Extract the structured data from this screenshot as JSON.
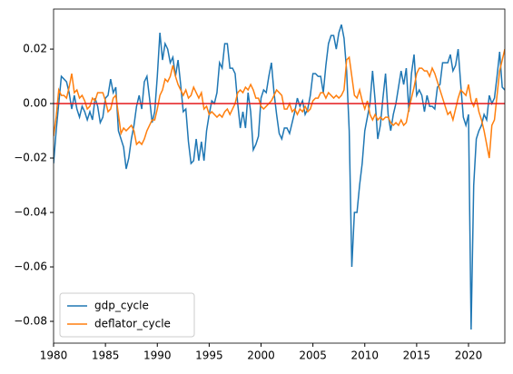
{
  "chart_data": {
    "type": "line",
    "x": [
      1980,
      1980.25,
      1980.5,
      1980.75,
      1981,
      1981.25,
      1981.5,
      1981.75,
      1982,
      1982.25,
      1982.5,
      1982.75,
      1983,
      1983.25,
      1983.5,
      1983.75,
      1984,
      1984.25,
      1984.5,
      1984.75,
      1985,
      1985.25,
      1985.5,
      1985.75,
      1986,
      1986.25,
      1986.5,
      1986.75,
      1987,
      1987.25,
      1987.5,
      1987.75,
      1988,
      1988.25,
      1988.5,
      1988.75,
      1989,
      1989.25,
      1989.5,
      1989.75,
      1990,
      1990.25,
      1990.5,
      1990.75,
      1991,
      1991.25,
      1991.5,
      1991.75,
      1992,
      1992.25,
      1992.5,
      1992.75,
      1993,
      1993.25,
      1993.5,
      1993.75,
      1994,
      1994.25,
      1994.5,
      1994.75,
      1995,
      1995.25,
      1995.5,
      1995.75,
      1996,
      1996.25,
      1996.5,
      1996.75,
      1997,
      1997.25,
      1997.5,
      1997.75,
      1998,
      1998.25,
      1998.5,
      1998.75,
      1999,
      1999.25,
      1999.5,
      1999.75,
      2000,
      2000.25,
      2000.5,
      2000.75,
      2001,
      2001.25,
      2001.5,
      2001.75,
      2002,
      2002.25,
      2002.5,
      2002.75,
      2003,
      2003.25,
      2003.5,
      2003.75,
      2004,
      2004.25,
      2004.5,
      2004.75,
      2005,
      2005.25,
      2005.5,
      2005.75,
      2006,
      2006.25,
      2006.5,
      2006.75,
      2007,
      2007.25,
      2007.5,
      2007.75,
      2008,
      2008.25,
      2008.5,
      2008.75,
      2009,
      2009.25,
      2009.5,
      2009.75,
      2010,
      2010.25,
      2010.5,
      2010.75,
      2011,
      2011.25,
      2011.5,
      2011.75,
      2012,
      2012.25,
      2012.5,
      2012.75,
      2013,
      2013.25,
      2013.5,
      2013.75,
      2014,
      2014.25,
      2014.5,
      2014.75,
      2015,
      2015.25,
      2015.5,
      2015.75,
      2016,
      2016.25,
      2016.5,
      2016.75,
      2017,
      2017.25,
      2017.5,
      2017.75,
      2018,
      2018.25,
      2018.5,
      2018.75,
      2019,
      2019.25,
      2019.5,
      2019.75,
      2020,
      2020.25,
      2020.5,
      2020.75,
      2021,
      2021.25,
      2021.5,
      2021.75,
      2022,
      2022.25,
      2022.5,
      2022.75,
      2023,
      2023.25,
      2023.5
    ],
    "series": [
      {
        "name": "gdp_cycle",
        "color": "#1f77b4",
        "values": [
          -0.022,
          -0.01,
          0.0,
          0.01,
          0.009,
          0.008,
          0.004,
          -0.002,
          0.003,
          -0.002,
          -0.005,
          -0.001,
          -0.003,
          -0.006,
          -0.003,
          -0.006,
          0.002,
          -0.001,
          -0.007,
          -0.005,
          0.002,
          0.003,
          0.009,
          0.004,
          0.006,
          -0.01,
          -0.013,
          -0.016,
          -0.024,
          -0.02,
          -0.013,
          -0.008,
          -0.001,
          0.003,
          -0.002,
          0.008,
          0.01,
          0.002,
          -0.007,
          -0.003,
          0.01,
          0.026,
          0.016,
          0.022,
          0.02,
          0.015,
          0.017,
          0.01,
          0.016,
          0.007,
          -0.003,
          -0.002,
          -0.014,
          -0.022,
          -0.021,
          -0.013,
          -0.021,
          -0.014,
          -0.021,
          -0.01,
          -0.004,
          0.001,
          0.0,
          0.004,
          0.015,
          0.013,
          0.022,
          0.022,
          0.013,
          0.013,
          0.011,
          0.0,
          -0.009,
          -0.003,
          -0.009,
          0.004,
          -0.003,
          -0.017,
          -0.015,
          -0.012,
          0.002,
          0.005,
          0.004,
          0.01,
          0.015,
          0.004,
          -0.004,
          -0.011,
          -0.013,
          -0.009,
          -0.009,
          -0.011,
          -0.007,
          -0.003,
          0.002,
          -0.001,
          0.001,
          -0.004,
          -0.002,
          0.003,
          0.011,
          0.011,
          0.01,
          0.01,
          0.004,
          0.014,
          0.022,
          0.025,
          0.025,
          0.02,
          0.026,
          0.029,
          0.024,
          0.012,
          -0.01,
          -0.06,
          -0.04,
          -0.04,
          -0.03,
          -0.022,
          -0.01,
          -0.005,
          0.0,
          0.012,
          0.001,
          -0.013,
          -0.008,
          0.002,
          0.011,
          -0.004,
          -0.01,
          -0.004,
          0.0,
          0.006,
          0.012,
          0.007,
          0.013,
          -0.003,
          0.011,
          0.018,
          0.003,
          0.005,
          0.003,
          -0.003,
          0.003,
          -0.001,
          -0.001,
          -0.002,
          0.006,
          0.007,
          0.015,
          0.015,
          0.015,
          0.018,
          0.012,
          0.014,
          0.02,
          0.007,
          -0.005,
          -0.008,
          -0.004,
          -0.083,
          -0.03,
          -0.013,
          -0.01,
          -0.008,
          -0.004,
          -0.006,
          0.003,
          0.0,
          0.002,
          0.01,
          0.019,
          0.006,
          0.005
        ]
      },
      {
        "name": "deflator_cycle",
        "color": "#ff7f0e",
        "values": [
          -0.012,
          -0.005,
          0.005,
          0.003,
          0.003,
          0.002,
          0.006,
          0.011,
          0.004,
          0.005,
          0.002,
          0.003,
          0.001,
          -0.002,
          -0.001,
          0.002,
          0.001,
          0.004,
          0.004,
          0.004,
          0.001,
          -0.003,
          -0.002,
          0.002,
          0.003,
          -0.004,
          -0.011,
          -0.009,
          -0.01,
          -0.009,
          -0.008,
          -0.01,
          -0.015,
          -0.014,
          -0.015,
          -0.013,
          -0.01,
          -0.008,
          -0.006,
          -0.006,
          -0.002,
          0.003,
          0.005,
          0.009,
          0.008,
          0.01,
          0.014,
          0.01,
          0.007,
          0.005,
          0.003,
          0.005,
          0.002,
          0.003,
          0.006,
          0.004,
          0.002,
          0.004,
          -0.002,
          -0.001,
          -0.004,
          -0.003,
          -0.004,
          -0.005,
          -0.004,
          -0.005,
          -0.003,
          -0.002,
          -0.004,
          -0.002,
          0.0,
          0.004,
          0.005,
          0.004,
          0.006,
          0.005,
          0.007,
          0.005,
          0.002,
          0.002,
          -0.001,
          -0.002,
          -0.001,
          0.0,
          0.001,
          0.003,
          0.005,
          0.004,
          0.003,
          -0.002,
          -0.002,
          0.0,
          -0.003,
          -0.002,
          -0.004,
          -0.002,
          -0.003,
          -0.001,
          -0.003,
          -0.002,
          0.001,
          0.002,
          0.002,
          0.004,
          0.004,
          0.002,
          0.004,
          0.003,
          0.002,
          0.003,
          0.002,
          0.003,
          0.005,
          0.016,
          0.017,
          0.01,
          0.003,
          0.002,
          0.005,
          0.001,
          -0.002,
          0.001,
          -0.004,
          -0.006,
          -0.004,
          -0.006,
          -0.005,
          -0.006,
          -0.005,
          -0.005,
          -0.007,
          -0.008,
          -0.007,
          -0.008,
          -0.006,
          -0.008,
          -0.007,
          -0.002,
          0.002,
          0.006,
          0.011,
          0.013,
          0.013,
          0.012,
          0.012,
          0.01,
          0.013,
          0.011,
          0.008,
          0.005,
          0.002,
          -0.001,
          -0.004,
          -0.003,
          -0.006,
          -0.002,
          0.002,
          0.005,
          0.004,
          0.003,
          0.007,
          0.001,
          -0.001,
          0.002,
          -0.003,
          -0.006,
          -0.01,
          -0.015,
          -0.02,
          -0.008,
          -0.006,
          0.003,
          0.012,
          0.016,
          0.02
        ]
      }
    ],
    "reference_line": {
      "value": 0,
      "color": "#e41a1c"
    },
    "xlim": [
      1980,
      2023.5
    ],
    "xticks": [
      1980,
      1985,
      1990,
      1995,
      2000,
      2005,
      2010,
      2015,
      2020
    ],
    "ylim": [
      -0.088,
      0.0347
    ],
    "yticks": [
      {
        "value": -0.08,
        "label": "−0.08"
      },
      {
        "value": -0.06,
        "label": "−0.06"
      },
      {
        "value": -0.04,
        "label": "−0.04"
      },
      {
        "value": -0.02,
        "label": "−0.02"
      },
      {
        "value": 0,
        "label": "0.00"
      },
      0.02
    ],
    "legend": "lower left"
  }
}
